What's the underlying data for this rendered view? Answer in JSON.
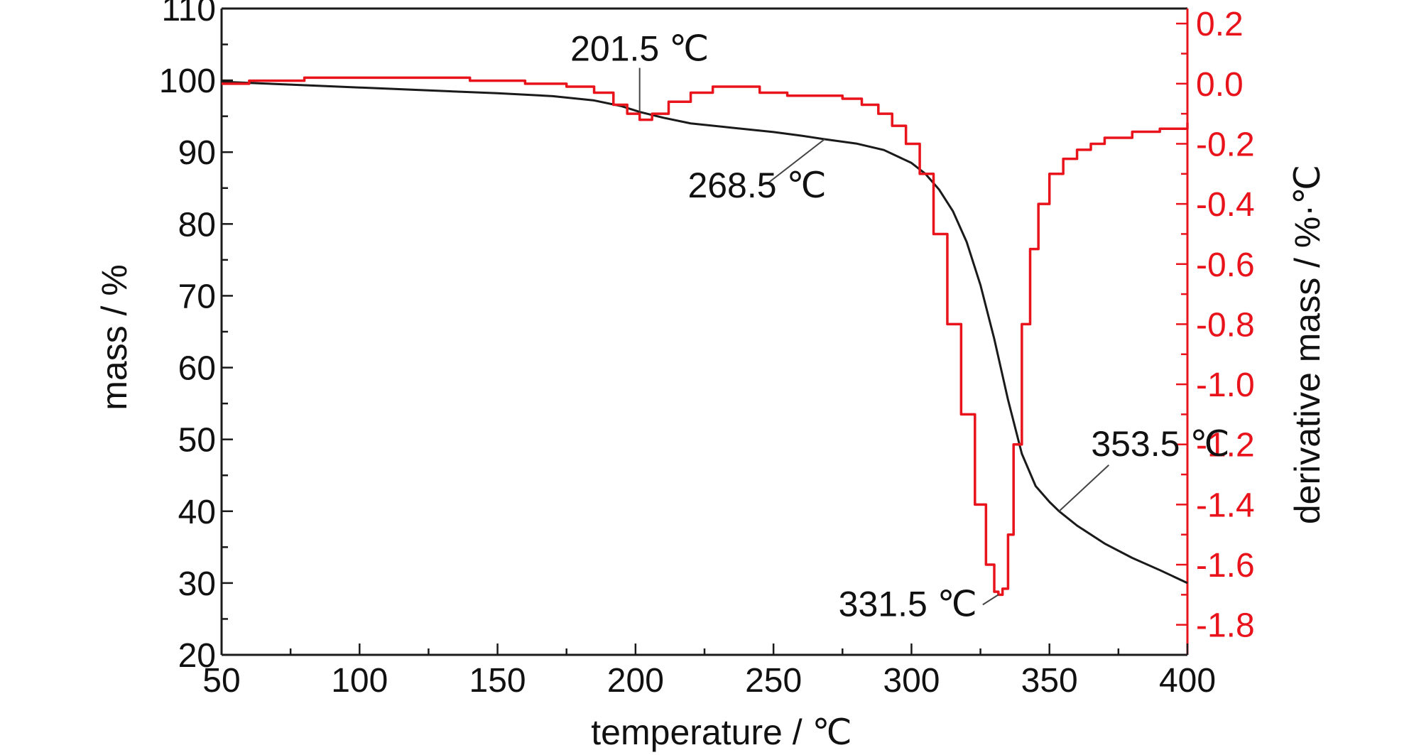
{
  "chart_data": {
    "type": "line",
    "title": "",
    "xlabel": "temperature / ℃",
    "ylabel_left": "mass / %",
    "ylabel_right": "derivative mass / %·℃",
    "xlim": [
      50,
      400
    ],
    "ylim_left": [
      20,
      110
    ],
    "ylim_right": [
      -1.9,
      0.25
    ],
    "x_ticks": [
      50,
      100,
      150,
      200,
      250,
      300,
      350,
      400
    ],
    "y_left_ticks": [
      20,
      30,
      40,
      50,
      60,
      70,
      80,
      90,
      100,
      110
    ],
    "y_right_ticks": [
      0.2,
      0.0,
      -0.2,
      -0.4,
      -0.6,
      -0.8,
      -1.0,
      -1.2,
      -1.4,
      -1.6,
      -1.8
    ],
    "y_right_tick_labels": [
      "0.2",
      "0.0",
      "-0.2",
      "-0.4",
      "-0.6",
      "-0.8",
      "-1.0",
      "-1.2",
      "-1.4",
      "-1.6",
      "-1.8"
    ],
    "grid": false,
    "legend": "none",
    "series": [
      {
        "axis": "left",
        "color": "#1a1a1a",
        "x": [
          50,
          75,
          100,
          125,
          150,
          170,
          185,
          195,
          201.5,
          210,
          220,
          235,
          250,
          260,
          268.5,
          280,
          290,
          300,
          305,
          310,
          315,
          320,
          325,
          330,
          335,
          340,
          345,
          350,
          353.5,
          360,
          370,
          380,
          390,
          400
        ],
        "y": [
          99.8,
          99.4,
          99.0,
          98.6,
          98.2,
          97.8,
          97.2,
          96.4,
          95.6,
          94.8,
          94.0,
          93.4,
          92.8,
          92.3,
          91.8,
          91.2,
          90.3,
          88.5,
          87.0,
          84.8,
          81.8,
          77.5,
          71.5,
          64.0,
          55.5,
          48.0,
          43.5,
          41.3,
          40.0,
          38.0,
          35.5,
          33.5,
          31.8,
          30.0
        ]
      },
      {
        "axis": "right",
        "color": "#e8131b",
        "x": [
          50,
          60,
          70,
          80,
          100,
          120,
          140,
          160,
          175,
          185,
          192,
          197,
          201.5,
          206,
          212,
          220,
          228,
          235,
          245,
          255,
          265,
          275,
          282,
          288,
          293,
          298,
          303,
          308,
          313,
          318,
          323,
          327,
          330,
          331.5,
          333,
          335,
          337,
          340,
          343,
          346,
          350,
          355,
          360,
          365,
          370,
          380,
          390,
          400
        ],
        "y": [
          0.0,
          0.01,
          0.01,
          0.02,
          0.02,
          0.02,
          0.01,
          0.0,
          -0.01,
          -0.03,
          -0.07,
          -0.1,
          -0.12,
          -0.1,
          -0.06,
          -0.03,
          -0.01,
          -0.01,
          -0.03,
          -0.04,
          -0.04,
          -0.05,
          -0.07,
          -0.1,
          -0.14,
          -0.2,
          -0.3,
          -0.5,
          -0.8,
          -1.1,
          -1.4,
          -1.6,
          -1.69,
          -1.7,
          -1.68,
          -1.5,
          -1.2,
          -0.8,
          -0.55,
          -0.4,
          -0.3,
          -0.25,
          -0.22,
          -0.2,
          -0.18,
          -0.16,
          -0.15,
          -0.13
        ]
      }
    ],
    "annotations": [
      {
        "text": "201.5 ℃",
        "x": 201.5,
        "y": 95.6,
        "axis": "left"
      },
      {
        "text": "268.5 ℃",
        "x": 268.5,
        "y": 91.8,
        "axis": "left"
      },
      {
        "text": "331.5 ℃",
        "x": 331.5,
        "y": -1.7,
        "axis": "right"
      },
      {
        "text": "353.5 ℃",
        "x": 353.5,
        "y": 40.0,
        "axis": "left"
      }
    ]
  }
}
